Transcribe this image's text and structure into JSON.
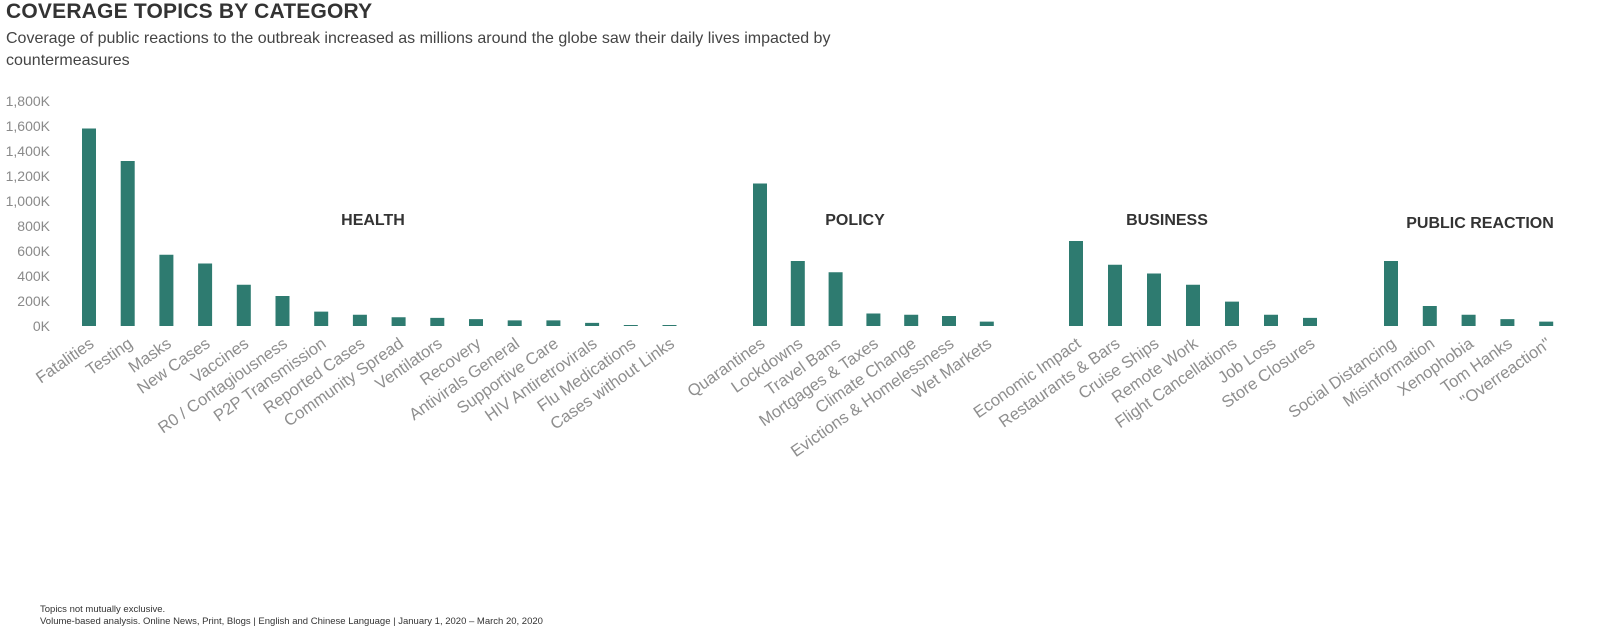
{
  "header": {
    "title": "COVERAGE TOPICS BY CATEGORY",
    "subtitle": "Coverage of public reactions to the outbreak increased as millions around the globe saw their daily lives impacted by countermeasures"
  },
  "footnotes": {
    "line1": "Topics not mutually exclusive.",
    "line2": "Volume-based analysis. Online News, Print, Blogs | English and Chinese Language | January 1, 2020 – March 20, 2020"
  },
  "colors": {
    "bar": "#2e7b70",
    "axis_text": "#8a8a8a"
  },
  "chart_data": {
    "type": "bar",
    "y_ticks": [
      "0K",
      "200K",
      "400K",
      "600K",
      "800K",
      "1,000K",
      "1,200K",
      "1,400K",
      "1,600K",
      "1,800K"
    ],
    "ylim": [
      0,
      1800000
    ],
    "grid": false,
    "groups": [
      {
        "name": "HEALTH",
        "categories": [
          "Fatalities",
          "Testing",
          "Masks",
          "New Cases",
          "Vaccines",
          "R0 / Contagiousness",
          "P2P Transmission",
          "Reported Cases",
          "Community Spread",
          "Ventilators",
          "Recovery",
          "Antivirals General",
          "Supportive Care",
          "HIV Antiretrovirals",
          "Flu Medications",
          "Cases without Links"
        ],
        "values": [
          1580000,
          1320000,
          570000,
          500000,
          330000,
          240000,
          115000,
          90000,
          70000,
          65000,
          55000,
          45000,
          45000,
          25000,
          5000,
          3000
        ]
      },
      {
        "name": "POLICY",
        "categories": [
          "Quarantines",
          "Lockdowns",
          "Travel Bans",
          "Mortgages & Taxes",
          "Climate Change",
          "Evictions & Homelessness",
          "Wet Markets"
        ],
        "values": [
          1140000,
          520000,
          430000,
          100000,
          90000,
          80000,
          35000
        ]
      },
      {
        "name": "BUSINESS",
        "categories": [
          "Economic Impact",
          "Restaurants & Bars",
          "Cruise Ships",
          "Remote Work",
          "Flight Cancellations",
          "Job Loss",
          "Store Closures"
        ],
        "values": [
          680000,
          490000,
          420000,
          330000,
          195000,
          90000,
          65000
        ]
      },
      {
        "name": "PUBLIC REACTION",
        "categories": [
          "Social Distancing",
          "Misinformation",
          "Xenophobia",
          "Tom Hanks",
          "\"Overreaction\""
        ],
        "values": [
          520000,
          160000,
          90000,
          55000,
          35000
        ]
      }
    ]
  }
}
